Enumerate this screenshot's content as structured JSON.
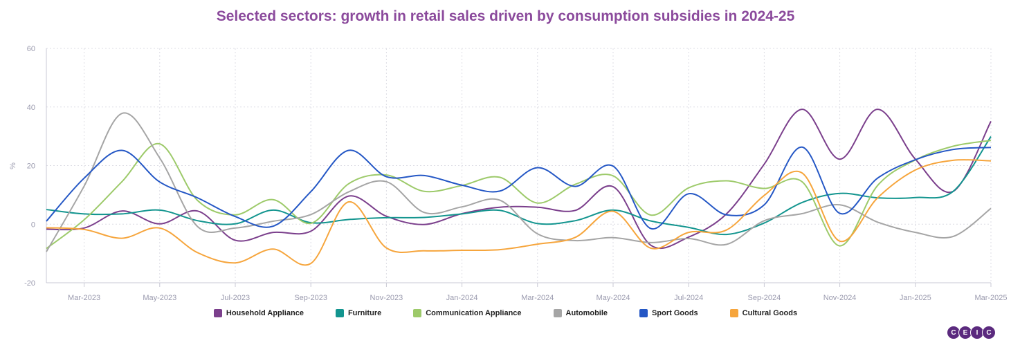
{
  "chart_data": {
    "type": "line",
    "title": "Selected sectors: growth in retail sales driven by consumption subsidies in 2024-25",
    "ylabel": "%",
    "ylim": [
      -20,
      60
    ],
    "yticks": [
      -20,
      0,
      20,
      40,
      60
    ],
    "x": [
      "2023-02",
      "2023-03",
      "2023-04",
      "2023-05",
      "2023-06",
      "2023-07",
      "2023-08",
      "2023-09",
      "2023-10",
      "2023-11",
      "2023-12",
      "2024-01",
      "2024-02",
      "2024-03",
      "2024-04",
      "2024-05",
      "2024-06",
      "2024-07",
      "2024-08",
      "2024-09",
      "2024-10",
      "2024-11",
      "2024-12",
      "2025-01",
      "2025-02",
      "2025-03"
    ],
    "xticks": [
      "Mar-2023",
      "May-2023",
      "Jul-2023",
      "Sep-2023",
      "Nov-2023",
      "Jan-2024",
      "Mar-2024",
      "May-2024",
      "Jul-2024",
      "Sep-2024",
      "Nov-2024",
      "Jan-2025",
      "Mar-2025"
    ],
    "grid": true,
    "legend_position": "bottom",
    "series": [
      {
        "name": "Household Appliance",
        "color": "#7b3f8c",
        "values": [
          -1.7,
          -1.3,
          4.5,
          0.1,
          4.5,
          -5.5,
          -2.8,
          -2.4,
          9.6,
          2.7,
          -0.1,
          3.6,
          5.8,
          5.8,
          4.7,
          12.8,
          -7.2,
          -4.4,
          3.5,
          20.5,
          39.2,
          22.2,
          39.2,
          22.2,
          11.2,
          35.1
        ]
      },
      {
        "name": "Furniture",
        "color": "#13958f",
        "values": [
          5.0,
          3.5,
          3.5,
          4.8,
          1.2,
          0.1,
          4.8,
          0.5,
          1.6,
          2.2,
          2.3,
          3.5,
          4.7,
          0.2,
          1.2,
          4.8,
          1.1,
          -1.1,
          -3.5,
          0.4,
          7.4,
          10.5,
          9.0,
          9.1,
          11.2,
          29.9
        ]
      },
      {
        "name": "Communication Appliance",
        "color": "#9dca6a",
        "values": [
          -8.3,
          1.5,
          14.5,
          27.4,
          8.1,
          3.2,
          8.4,
          0.3,
          13.8,
          16.8,
          11.2,
          13.2,
          16.0,
          7.2,
          13.6,
          16.5,
          3.1,
          12.4,
          14.8,
          12.2,
          14.5,
          -7.4,
          13.2,
          21.9,
          26.6,
          28.6
        ]
      },
      {
        "name": "Automobile",
        "color": "#a5a5a5",
        "values": [
          -9.4,
          13.0,
          37.8,
          22.6,
          -0.8,
          -1.3,
          1.0,
          3.3,
          11.0,
          14.5,
          4.0,
          5.9,
          8.2,
          -3.3,
          -5.6,
          -4.6,
          -6.3,
          -4.9,
          -6.9,
          1.2,
          3.6,
          6.6,
          0.7,
          -2.8,
          -4.2,
          5.4
        ]
      },
      {
        "name": "Sport Goods",
        "color": "#2457c5",
        "values": [
          1.0,
          15.7,
          25.2,
          14.4,
          9.0,
          2.6,
          -0.7,
          11.1,
          25.2,
          16.2,
          16.6,
          13.3,
          11.3,
          19.3,
          12.9,
          19.8,
          -1.5,
          10.4,
          3.2,
          6.6,
          26.3,
          3.7,
          15.7,
          22.0,
          25.5,
          26.2
        ]
      },
      {
        "name": "Cultural Goods",
        "color": "#f6a53c",
        "values": [
          -1.2,
          -1.8,
          -4.8,
          -1.3,
          -9.7,
          -13.2,
          -8.5,
          -13.4,
          7.6,
          -8.1,
          -9.1,
          -8.9,
          -8.7,
          -6.8,
          -4.5,
          4.4,
          -8.2,
          -2.8,
          -2.0,
          9.8,
          17.5,
          -5.8,
          9.0,
          18.5,
          21.8,
          21.6
        ]
      }
    ]
  },
  "logo_text": "CEIC"
}
